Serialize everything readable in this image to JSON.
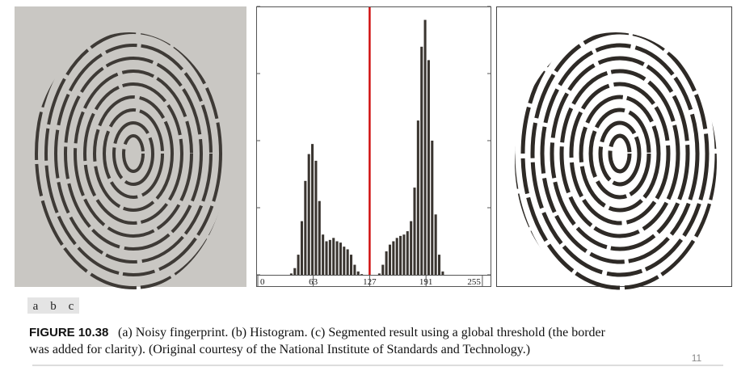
{
  "panel_labels": [
    "a",
    "b",
    "c"
  ],
  "caption": {
    "label": "FIGURE 10.38",
    "line1": "(a) Noisy fingerprint. (b) Histogram. (c) Segmented result using a global threshold (the border",
    "line2": "was added for clarity). (Original courtesy of the National Institute of Standards and Technology.)"
  },
  "page_number": "11",
  "chart_data": {
    "type": "histogram",
    "bins": [
      0,
      4,
      8,
      12,
      16,
      20,
      24,
      28,
      32,
      36,
      40,
      44,
      48,
      52,
      56,
      60,
      64,
      68,
      72,
      76,
      80,
      84,
      88,
      92,
      96,
      100,
      104,
      108,
      112,
      116,
      120,
      124,
      128,
      132,
      136,
      140,
      144,
      148,
      152,
      156,
      160,
      164,
      168,
      172,
      176,
      180,
      184,
      188,
      192,
      196,
      200,
      204,
      208,
      212,
      216,
      220,
      224,
      228,
      232,
      236,
      240,
      244,
      248,
      252,
      256
    ],
    "values": [
      0,
      0,
      0,
      0,
      0,
      0,
      0,
      0,
      0,
      0.02,
      0.1,
      0.3,
      0.8,
      1.4,
      1.8,
      1.95,
      1.7,
      1.1,
      0.6,
      0.5,
      0.52,
      0.55,
      0.5,
      0.48,
      0.42,
      0.38,
      0.3,
      0.15,
      0.05,
      0.01,
      0,
      0,
      0,
      0,
      0.02,
      0.15,
      0.35,
      0.45,
      0.5,
      0.55,
      0.58,
      0.6,
      0.65,
      0.8,
      1.3,
      2.3,
      3.4,
      3.8,
      3.2,
      2.0,
      0.9,
      0.3,
      0.05,
      0,
      0,
      0,
      0,
      0,
      0,
      0,
      0,
      0,
      0,
      0
    ],
    "color": "#3a3530",
    "xlim": [
      0,
      256
    ],
    "xticks": [
      0,
      63,
      127,
      191,
      255
    ],
    "ylim": [
      0,
      4
    ],
    "yticks": [
      0,
      1,
      2,
      3,
      4
    ],
    "threshold": 127,
    "threshold_color": "#d01010"
  }
}
